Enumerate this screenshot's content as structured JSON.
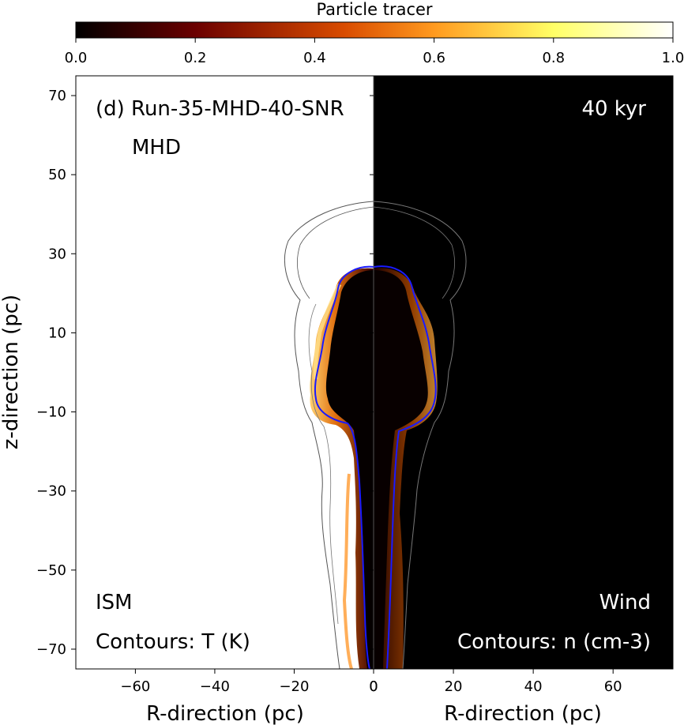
{
  "chart_data": {
    "type": "heatmap",
    "panel_label": "(d) Run-35-MHD-40-SNR",
    "subtitle": "MHD",
    "time_label": "40 kyr",
    "colorbar": {
      "label": "Particle tracer",
      "range": [
        0.0,
        1.0
      ],
      "ticks": [
        "0.0",
        "0.2",
        "0.4",
        "0.6",
        "0.8",
        "1.0"
      ],
      "tick_values": [
        0.0,
        0.2,
        0.4,
        0.6,
        0.8,
        1.0
      ],
      "colormap": "afmhot",
      "stops": [
        "#000000",
        "#6b0000",
        "#d94c00",
        "#ff9a1f",
        "#ffff66",
        "#ffffff"
      ]
    },
    "xlabel_left": "R-direction (pc)",
    "xlabel_right": "R-direction (pc)",
    "ylabel": "z-direction (pc)",
    "x_left_ticks": {
      "values": [
        -60,
        -40,
        -20,
        0
      ],
      "labels": [
        "−60",
        "−40",
        "−20",
        "0"
      ]
    },
    "x_right_ticks": {
      "values": [
        0,
        20,
        40,
        60
      ],
      "labels": [
        "0",
        "20",
        "40",
        "60"
      ]
    },
    "y_ticks": {
      "values": [
        70,
        50,
        30,
        10,
        -10,
        -30,
        -50,
        -70
      ],
      "labels": [
        "70",
        "50",
        "30",
        "10",
        "−10",
        "−30",
        "−50",
        "−70"
      ]
    },
    "xlim": [
      -75,
      75
    ],
    "ylim": [
      -75,
      75
    ],
    "left_half": {
      "region_label": "ISM",
      "contour_label": "Contours: T (K)"
    },
    "right_half": {
      "region_label": "Wind",
      "contour_label": "Contours: n (cm-3)"
    },
    "colors": {
      "background_left": "#ffffff",
      "background_right": "#000000",
      "blue_contour": "#1a1aff",
      "gray_contour": "#555555"
    }
  }
}
